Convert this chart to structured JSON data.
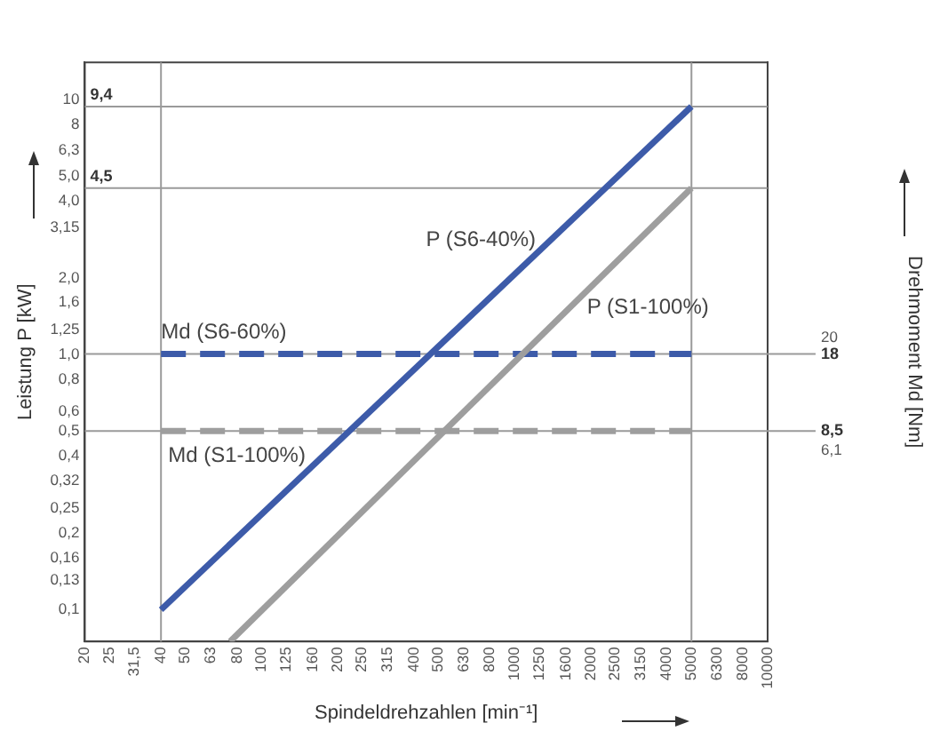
{
  "chart_data": {
    "type": "line",
    "xlabel": "Spindeldrehzahlen [min⁻¹]",
    "ylabel": "Leistung P [kW]",
    "y2label": "Drehmoment Md [Nm]",
    "log": "xy",
    "grid": false,
    "legend": false,
    "marker": "none",
    "xlim": [
      20,
      10000
    ],
    "xticks": [
      20,
      25,
      {
        "value": 31.5,
        "label": "31,5"
      },
      40,
      50,
      63,
      80,
      100,
      125,
      160,
      200,
      250,
      315,
      400,
      500,
      630,
      800,
      1000,
      1250,
      1600,
      2000,
      2500,
      3150,
      4000,
      5000,
      6300,
      8000,
      10000
    ],
    "ylim": [
      0.075,
      14
    ],
    "yticks": [
      {
        "value": 0.1,
        "label": "0,1"
      },
      {
        "value": 0.13,
        "label": "0,13"
      },
      {
        "value": 0.16,
        "label": "0,16"
      },
      {
        "value": 0.2,
        "label": "0,2"
      },
      {
        "value": 0.25,
        "label": "0,25"
      },
      {
        "value": 0.32,
        "label": "0,32"
      },
      {
        "value": 0.4,
        "label": "0,4"
      },
      {
        "value": 0.5,
        "label": "0,5"
      },
      {
        "value": 0.6,
        "label": "0,6"
      },
      {
        "value": 0.8,
        "label": "0,8"
      },
      {
        "value": 1.0,
        "label": "1,0"
      },
      {
        "value": 1.25,
        "label": "1,25"
      },
      {
        "value": 1.6,
        "label": "1,6"
      },
      {
        "value": 2.0,
        "label": "2,0"
      },
      {
        "value": 3.15,
        "label": "3,15"
      },
      {
        "value": 4.0,
        "label": "4,0"
      },
      {
        "value": 5.0,
        "label": "5,0"
      },
      {
        "value": 6.3,
        "label": "6,3"
      },
      8,
      10
    ],
    "y2lim": [
      -17.5,
      54
    ],
    "y2ticks": [
      {
        "value": 6.1,
        "label": "6,1"
      },
      20
    ],
    "ref_lines": [
      {
        "axis": "y",
        "value": 9.4,
        "label": "9,4",
        "color": "#9a9a9a"
      },
      {
        "axis": "y",
        "value": 4.5,
        "label": "4,5",
        "color": "#9a9a9a"
      },
      {
        "axis": "x",
        "value": 40,
        "color": "#9a9a9a"
      },
      {
        "axis": "x",
        "value": 5000,
        "color": "#9a9a9a"
      },
      {
        "axis": "y2",
        "value": 18,
        "label": "18",
        "color": "#9a9a9a"
      },
      {
        "axis": "y2",
        "value": 8.5,
        "label": "8,5",
        "color": "#9a9a9a"
      }
    ],
    "series": [
      {
        "name": "P (S6-40%)",
        "color": "#3d5ba9",
        "x": [
          40,
          5000
        ],
        "values": [
          0.1,
          9.4
        ]
      },
      {
        "name": "P (S1-100%)",
        "color": "#9e9e9e",
        "x": [
          75,
          5000
        ],
        "values": [
          0.075,
          4.5
        ]
      },
      {
        "name": "Md (S6-60%)",
        "color": "#3d5ba9",
        "x": [
          40,
          5000
        ],
        "values": [
          18,
          18
        ],
        "axis": "y2",
        "line_style": "dashed"
      },
      {
        "name": "Md (S1-100%)",
        "color": "#9e9e9e",
        "x": [
          40,
          5000
        ],
        "values": [
          8.5,
          8.5
        ],
        "axis": "y2",
        "line_style": "dashed"
      }
    ]
  }
}
